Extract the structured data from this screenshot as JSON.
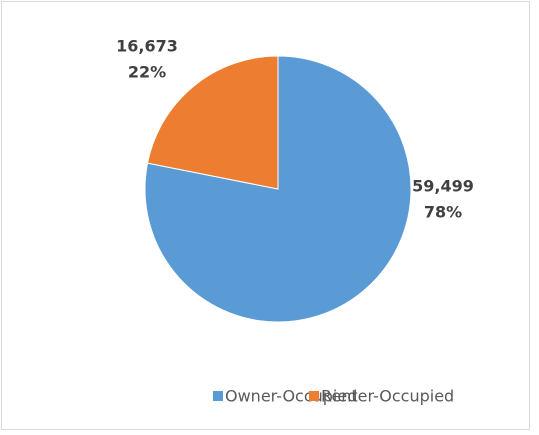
{
  "chart_data": {
    "type": "pie",
    "categories": [
      "Owner-Occupied",
      "Renter-Occupied"
    ],
    "values": [
      59499,
      16673
    ],
    "value_labels": [
      "59,499",
      "16,673"
    ],
    "percents": [
      78,
      22
    ],
    "percent_labels": [
      "78%",
      "22%"
    ],
    "colors": [
      "#5b9bd5",
      "#ed7d31"
    ],
    "legend": "bottom"
  }
}
